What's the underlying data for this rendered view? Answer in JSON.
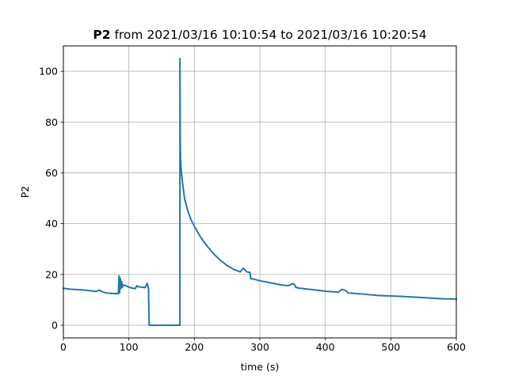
{
  "chart_data": {
    "type": "line",
    "title": {
      "bold": "P2",
      "rest": " from 2021/03/16 10:10:54 to 2021/03/16 10:20:54"
    },
    "xlabel": "time (s)",
    "ylabel": "P2",
    "xlim": [
      0,
      600
    ],
    "ylim": [
      -5,
      110
    ],
    "xticks": [
      0,
      100,
      200,
      300,
      400,
      500,
      600
    ],
    "yticks": [
      0,
      20,
      40,
      60,
      80,
      100
    ],
    "grid": true,
    "colors": {
      "line": "#1f77b4",
      "grid": "#b0b0b0",
      "axes": "#000000"
    },
    "series": [
      {
        "x": [
          0,
          10,
          20,
          30,
          40,
          50,
          55,
          60,
          65,
          70,
          75,
          84,
          85,
          86,
          87,
          88,
          89,
          90,
          92,
          95,
          100,
          105,
          110,
          112,
          115,
          120,
          125,
          128,
          130,
          131,
          131,
          178,
          178,
          178.5,
          179,
          180,
          182,
          185,
          190,
          195,
          200,
          210,
          220,
          230,
          240,
          250,
          260,
          270,
          275,
          280,
          285,
          286,
          290,
          300,
          310,
          320,
          330,
          340,
          345,
          350,
          353,
          355,
          360,
          380,
          400,
          420,
          425,
          430,
          435,
          440,
          460,
          480,
          500,
          520,
          540,
          560,
          580,
          600
        ],
        "y": [
          14.5,
          14.2,
          14.0,
          13.9,
          13.6,
          13.3,
          13.8,
          13.1,
          12.7,
          12.6,
          12.5,
          12.4,
          19.5,
          12.8,
          18.5,
          14.5,
          17.2,
          15.0,
          15.8,
          15.6,
          15.0,
          14.6,
          14.4,
          15.5,
          15.1,
          15.0,
          14.8,
          16.5,
          14.5,
          0.0,
          0.0,
          0.0,
          105.0,
          72.0,
          65.0,
          61.0,
          56.0,
          50.0,
          45.0,
          41.5,
          39.0,
          34.5,
          31.0,
          28.0,
          25.5,
          23.5,
          22.0,
          21.0,
          22.5,
          21.0,
          20.8,
          18.3,
          18.2,
          17.5,
          17.0,
          16.5,
          16.0,
          15.6,
          15.7,
          16.4,
          16.0,
          14.9,
          14.6,
          14.0,
          13.4,
          13.0,
          14.1,
          13.8,
          12.7,
          12.6,
          12.2,
          11.7,
          11.5,
          11.3,
          11.0,
          10.7,
          10.4,
          10.3
        ]
      }
    ]
  }
}
